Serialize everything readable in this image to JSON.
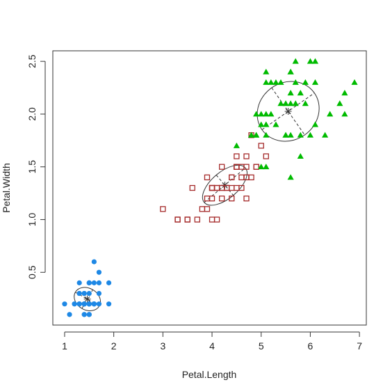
{
  "chart_data": {
    "type": "scatter",
    "title": "",
    "xlabel": "Petal.Length",
    "ylabel": "Petal.Width",
    "xlim": [
      0.76,
      7.14
    ],
    "ylim": [
      -0.0,
      2.6
    ],
    "xticks": [
      1,
      2,
      3,
      4,
      5,
      6,
      7
    ],
    "yticks": [
      0.5,
      1.0,
      1.5,
      2.0,
      2.5
    ],
    "xtick_labels": [
      "1",
      "2",
      "3",
      "4",
      "5",
      "6",
      "7"
    ],
    "ytick_labels": [
      "0.5",
      "1.0",
      "1.5",
      "2.0",
      "2.5"
    ],
    "grid": false,
    "legend": "none",
    "series": [
      {
        "marker": "circle",
        "color": "#1e88e5",
        "center": [
          1.462,
          0.246
        ],
        "ellipse": {
          "rx": 0.21,
          "ry": 0.125,
          "angle": -60
        },
        "points": [
          [
            1.4,
            0.2
          ],
          [
            1.4,
            0.2
          ],
          [
            1.3,
            0.2
          ],
          [
            1.5,
            0.2
          ],
          [
            1.4,
            0.2
          ],
          [
            1.7,
            0.4
          ],
          [
            1.4,
            0.3
          ],
          [
            1.5,
            0.2
          ],
          [
            1.4,
            0.2
          ],
          [
            1.5,
            0.1
          ],
          [
            1.5,
            0.2
          ],
          [
            1.6,
            0.2
          ],
          [
            1.4,
            0.1
          ],
          [
            1.1,
            0.1
          ],
          [
            1.2,
            0.2
          ],
          [
            1.5,
            0.4
          ],
          [
            1.3,
            0.4
          ],
          [
            1.4,
            0.3
          ],
          [
            1.7,
            0.3
          ],
          [
            1.5,
            0.3
          ],
          [
            1.7,
            0.2
          ],
          [
            1.5,
            0.4
          ],
          [
            1.0,
            0.2
          ],
          [
            1.7,
            0.5
          ],
          [
            1.9,
            0.2
          ],
          [
            1.6,
            0.2
          ],
          [
            1.6,
            0.4
          ],
          [
            1.5,
            0.2
          ],
          [
            1.4,
            0.2
          ],
          [
            1.6,
            0.2
          ],
          [
            1.6,
            0.2
          ],
          [
            1.5,
            0.4
          ],
          [
            1.5,
            0.1
          ],
          [
            1.4,
            0.2
          ],
          [
            1.5,
            0.2
          ],
          [
            1.2,
            0.2
          ],
          [
            1.3,
            0.2
          ],
          [
            1.4,
            0.1
          ],
          [
            1.3,
            0.2
          ],
          [
            1.5,
            0.2
          ],
          [
            1.3,
            0.3
          ],
          [
            1.3,
            0.3
          ],
          [
            1.3,
            0.2
          ],
          [
            1.6,
            0.6
          ],
          [
            1.9,
            0.4
          ],
          [
            1.4,
            0.3
          ],
          [
            1.6,
            0.2
          ],
          [
            1.4,
            0.2
          ],
          [
            1.5,
            0.2
          ],
          [
            1.4,
            0.2
          ]
        ]
      },
      {
        "marker": "square-open",
        "color": "#a52a2a",
        "center": [
          4.26,
          1.326
        ],
        "ellipse": {
          "rx": 0.52,
          "ry": 0.12,
          "angle": -40
        },
        "points": [
          [
            4.7,
            1.4
          ],
          [
            4.5,
            1.5
          ],
          [
            4.9,
            1.5
          ],
          [
            4.0,
            1.3
          ],
          [
            4.6,
            1.5
          ],
          [
            4.5,
            1.3
          ],
          [
            4.7,
            1.6
          ],
          [
            3.3,
            1.0
          ],
          [
            4.6,
            1.3
          ],
          [
            3.9,
            1.4
          ],
          [
            3.5,
            1.0
          ],
          [
            4.2,
            1.5
          ],
          [
            4.0,
            1.0
          ],
          [
            4.7,
            1.4
          ],
          [
            3.6,
            1.3
          ],
          [
            4.4,
            1.4
          ],
          [
            4.5,
            1.5
          ],
          [
            4.1,
            1.0
          ],
          [
            4.5,
            1.5
          ],
          [
            3.9,
            1.1
          ],
          [
            4.8,
            1.8
          ],
          [
            4.0,
            1.3
          ],
          [
            4.9,
            1.5
          ],
          [
            4.7,
            1.2
          ],
          [
            4.3,
            1.3
          ],
          [
            4.4,
            1.4
          ],
          [
            4.8,
            1.4
          ],
          [
            5.0,
            1.7
          ],
          [
            4.5,
            1.5
          ],
          [
            3.5,
            1.0
          ],
          [
            3.8,
            1.1
          ],
          [
            3.7,
            1.0
          ],
          [
            3.9,
            1.2
          ],
          [
            5.1,
            1.6
          ],
          [
            4.5,
            1.5
          ],
          [
            4.5,
            1.6
          ],
          [
            4.7,
            1.5
          ],
          [
            4.4,
            1.3
          ],
          [
            4.1,
            1.3
          ],
          [
            4.0,
            1.3
          ],
          [
            4.4,
            1.2
          ],
          [
            4.6,
            1.4
          ],
          [
            4.0,
            1.2
          ],
          [
            3.3,
            1.0
          ],
          [
            4.2,
            1.3
          ],
          [
            4.2,
            1.2
          ],
          [
            4.2,
            1.3
          ],
          [
            4.3,
            1.3
          ],
          [
            3.0,
            1.1
          ],
          [
            4.1,
            1.3
          ]
        ]
      },
      {
        "marker": "triangle",
        "color": "#00bb00",
        "center": [
          5.55,
          2.026
        ],
        "ellipse": {
          "rx": 0.62,
          "ry": 0.26,
          "angle": -35
        },
        "points": [
          [
            6.0,
            2.5
          ],
          [
            5.1,
            1.9
          ],
          [
            5.9,
            2.1
          ],
          [
            5.6,
            1.8
          ],
          [
            5.8,
            2.2
          ],
          [
            6.6,
            2.1
          ],
          [
            4.5,
            1.7
          ],
          [
            6.3,
            1.8
          ],
          [
            5.8,
            1.8
          ],
          [
            6.1,
            2.5
          ],
          [
            5.1,
            2.0
          ],
          [
            5.3,
            1.9
          ],
          [
            5.5,
            2.1
          ],
          [
            5.0,
            2.0
          ],
          [
            5.1,
            2.4
          ],
          [
            5.3,
            2.3
          ],
          [
            5.5,
            1.8
          ],
          [
            6.7,
            2.2
          ],
          [
            6.9,
            2.3
          ],
          [
            5.0,
            1.5
          ],
          [
            5.7,
            2.3
          ],
          [
            4.9,
            2.0
          ],
          [
            6.7,
            2.0
          ],
          [
            4.9,
            1.8
          ],
          [
            5.7,
            2.1
          ],
          [
            6.0,
            1.8
          ],
          [
            4.8,
            1.8
          ],
          [
            4.9,
            1.8
          ],
          [
            5.6,
            2.1
          ],
          [
            5.8,
            1.6
          ],
          [
            6.1,
            1.9
          ],
          [
            6.4,
            2.0
          ],
          [
            5.6,
            2.2
          ],
          [
            5.1,
            1.5
          ],
          [
            5.6,
            1.4
          ],
          [
            6.1,
            2.3
          ],
          [
            5.6,
            2.4
          ],
          [
            5.5,
            1.8
          ],
          [
            4.8,
            1.8
          ],
          [
            5.4,
            2.1
          ],
          [
            5.6,
            2.4
          ],
          [
            5.1,
            2.3
          ],
          [
            5.1,
            1.9
          ],
          [
            5.9,
            2.3
          ],
          [
            5.7,
            2.5
          ],
          [
            5.2,
            2.3
          ],
          [
            5.0,
            1.9
          ],
          [
            5.2,
            2.0
          ],
          [
            5.4,
            2.3
          ],
          [
            5.1,
            1.8
          ]
        ]
      }
    ]
  }
}
